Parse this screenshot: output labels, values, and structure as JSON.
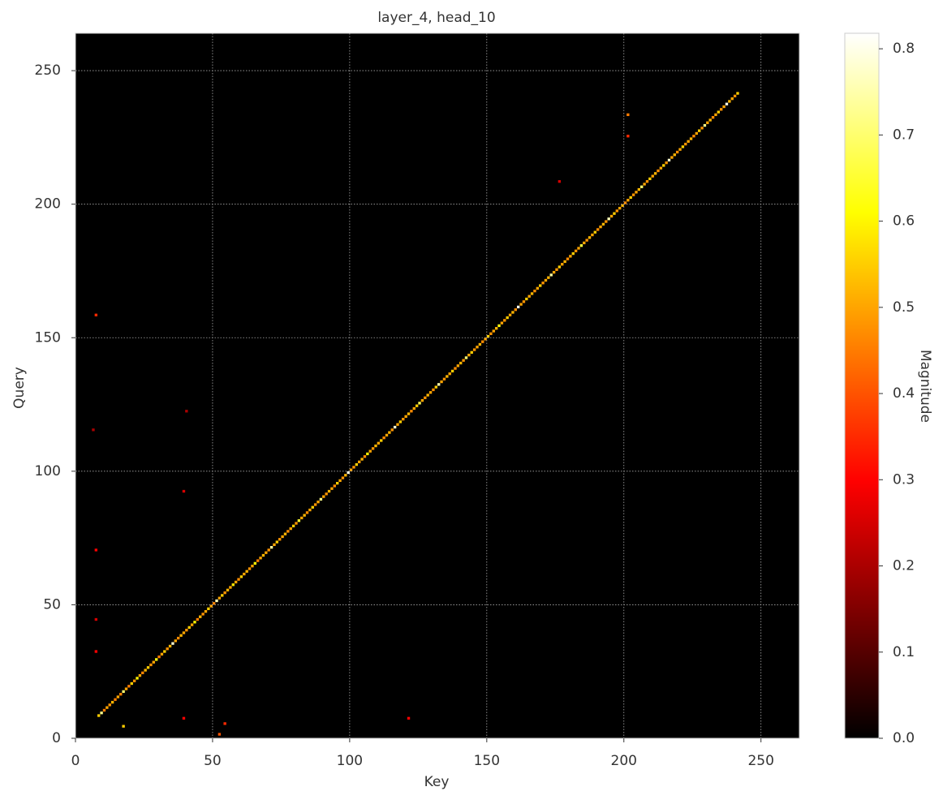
{
  "chart_data": {
    "type": "heatmap",
    "title": "layer_4, head_10",
    "x_label": "Key",
    "y_label": "Query",
    "colorbar_label": "Magnitude",
    "colormap": "hot",
    "grid": true,
    "xlim": [
      0,
      264
    ],
    "ylim": [
      0,
      264
    ],
    "clim": [
      0,
      0.818
    ],
    "xticks": [
      0,
      50,
      100,
      150,
      200,
      250
    ],
    "yticks": [
      0,
      50,
      100,
      150,
      200,
      250
    ],
    "cticks": [
      {
        "value": 0,
        "label": "0.0"
      },
      0.1,
      0.2,
      0.3,
      0.4,
      0.5,
      0.6,
      0.7,
      0.8
    ],
    "cells": {
      "x": [
        8,
        9,
        10,
        11,
        12,
        13,
        14,
        15,
        16,
        17,
        18,
        19,
        20,
        21,
        22,
        23,
        24,
        25,
        26,
        27,
        28,
        29,
        30,
        31,
        32,
        33,
        34,
        35,
        36,
        37,
        38,
        39,
        40,
        41,
        42,
        43,
        44,
        45,
        46,
        47,
        48,
        49,
        50,
        51,
        52,
        53,
        54,
        55,
        56,
        57,
        58,
        59,
        60,
        61,
        62,
        63,
        64,
        65,
        66,
        67,
        68,
        69,
        70,
        71,
        72,
        73,
        74,
        75,
        76,
        77,
        78,
        79,
        80,
        81,
        82,
        83,
        84,
        85,
        86,
        87,
        88,
        89,
        90,
        91,
        92,
        93,
        94,
        95,
        96,
        97,
        98,
        99,
        100,
        101,
        102,
        103,
        104,
        105,
        106,
        107,
        108,
        109,
        110,
        111,
        112,
        113,
        114,
        115,
        116,
        117,
        118,
        119,
        120,
        121,
        122,
        123,
        124,
        125,
        126,
        127,
        128,
        129,
        130,
        131,
        132,
        133,
        134,
        135,
        136,
        137,
        138,
        139,
        140,
        141,
        142,
        143,
        144,
        145,
        146,
        147,
        148,
        149,
        150,
        151,
        152,
        153,
        154,
        155,
        156,
        157,
        158,
        159,
        160,
        161,
        162,
        163,
        164,
        165,
        166,
        167,
        168,
        169,
        170,
        171,
        172,
        173,
        174,
        175,
        176,
        177,
        178,
        179,
        180,
        181,
        182,
        183,
        184,
        185,
        186,
        187,
        188,
        189,
        190,
        191,
        192,
        193,
        194,
        195,
        196,
        197,
        198,
        199,
        200,
        201,
        202,
        203,
        204,
        205,
        206,
        207,
        208,
        209,
        210,
        211,
        212,
        213,
        214,
        215,
        216,
        217,
        218,
        219,
        220,
        221,
        222,
        223,
        224,
        225,
        226,
        227,
        228,
        229,
        230,
        231,
        232,
        233,
        234,
        235,
        236,
        237,
        238,
        239,
        240,
        241,
        17,
        7,
        7,
        7,
        201,
        201,
        52,
        54,
        39,
        121,
        7,
        39,
        40,
        176,
        6
      ],
      "y": [
        8,
        9,
        10,
        11,
        12,
        13,
        14,
        15,
        16,
        17,
        18,
        19,
        20,
        21,
        22,
        23,
        24,
        25,
        26,
        27,
        28,
        29,
        30,
        31,
        32,
        33,
        34,
        35,
        36,
        37,
        38,
        39,
        40,
        41,
        42,
        43,
        44,
        45,
        46,
        47,
        48,
        49,
        50,
        51,
        52,
        53,
        54,
        55,
        56,
        57,
        58,
        59,
        60,
        61,
        62,
        63,
        64,
        65,
        66,
        67,
        68,
        69,
        70,
        71,
        72,
        73,
        74,
        75,
        76,
        77,
        78,
        79,
        80,
        81,
        82,
        83,
        84,
        85,
        86,
        87,
        88,
        89,
        90,
        91,
        92,
        93,
        94,
        95,
        96,
        97,
        98,
        99,
        100,
        101,
        102,
        103,
        104,
        105,
        106,
        107,
        108,
        109,
        110,
        111,
        112,
        113,
        114,
        115,
        116,
        117,
        118,
        119,
        120,
        121,
        122,
        123,
        124,
        125,
        126,
        127,
        128,
        129,
        130,
        131,
        132,
        133,
        134,
        135,
        136,
        137,
        138,
        139,
        140,
        141,
        142,
        143,
        144,
        145,
        146,
        147,
        148,
        149,
        150,
        151,
        152,
        153,
        154,
        155,
        156,
        157,
        158,
        159,
        160,
        161,
        162,
        163,
        164,
        165,
        166,
        167,
        168,
        169,
        170,
        171,
        172,
        173,
        174,
        175,
        176,
        177,
        178,
        179,
        180,
        181,
        182,
        183,
        184,
        185,
        186,
        187,
        188,
        189,
        190,
        191,
        192,
        193,
        194,
        195,
        196,
        197,
        198,
        199,
        200,
        201,
        202,
        203,
        204,
        205,
        206,
        207,
        208,
        209,
        210,
        211,
        212,
        213,
        214,
        215,
        216,
        217,
        218,
        219,
        220,
        221,
        222,
        223,
        224,
        225,
        226,
        227,
        228,
        229,
        230,
        231,
        232,
        233,
        234,
        235,
        236,
        237,
        238,
        239,
        240,
        241,
        4,
        158,
        70,
        32,
        233,
        225,
        1,
        5,
        7,
        7,
        44,
        92,
        122,
        208,
        115
      ],
      "values": [
        0.55,
        0.72,
        0.45,
        0.5,
        0.48,
        0.52,
        0.45,
        0.5,
        0.46,
        0.7,
        0.5,
        0.45,
        0.55,
        0.48,
        0.6,
        0.5,
        0.46,
        0.52,
        0.55,
        0.48,
        0.5,
        0.62,
        0.45,
        0.5,
        0.55,
        0.48,
        0.52,
        0.78,
        0.5,
        0.47,
        0.52,
        0.5,
        0.48,
        0.55,
        0.5,
        0.6,
        0.45,
        0.52,
        0.48,
        0.5,
        0.55,
        0.5,
        0.46,
        0.76,
        0.5,
        0.55,
        0.48,
        0.52,
        0.5,
        0.58,
        0.5,
        0.47,
        0.55,
        0.5,
        0.52,
        0.48,
        0.5,
        0.6,
        0.45,
        0.5,
        0.52,
        0.5,
        0.48,
        0.74,
        0.5,
        0.55,
        0.48,
        0.5,
        0.52,
        0.47,
        0.5,
        0.55,
        0.48,
        0.65,
        0.5,
        0.52,
        0.47,
        0.5,
        0.55,
        0.48,
        0.5,
        0.72,
        0.5,
        0.48,
        0.52,
        0.5,
        0.47,
        0.55,
        0.5,
        0.48,
        0.52,
        0.8,
        0.5,
        0.48,
        0.55,
        0.5,
        0.52,
        0.47,
        0.6,
        0.5,
        0.48,
        0.52,
        0.5,
        0.55,
        0.47,
        0.5,
        0.52,
        0.48,
        0.78,
        0.5,
        0.55,
        0.48,
        0.5,
        0.52,
        0.47,
        0.5,
        0.55,
        0.68,
        0.5,
        0.48,
        0.52,
        0.5,
        0.47,
        0.55,
        0.75,
        0.5,
        0.48,
        0.52,
        0.5,
        0.55,
        0.47,
        0.5,
        0.52,
        0.48,
        0.7,
        0.5,
        0.55,
        0.48,
        0.5,
        0.52,
        0.47,
        0.5,
        0.55,
        0.48,
        0.5,
        0.52,
        0.62,
        0.5,
        0.48,
        0.55,
        0.5,
        0.52,
        0.47,
        0.8,
        0.5,
        0.48,
        0.55,
        0.5,
        0.52,
        0.47,
        0.5,
        0.55,
        0.48,
        0.5,
        0.52,
        0.74,
        0.5,
        0.48,
        0.55,
        0.5,
        0.52,
        0.47,
        0.5,
        0.55,
        0.48,
        0.5,
        0.66,
        0.5,
        0.48,
        0.52,
        0.5,
        0.55,
        0.47,
        0.5,
        0.52,
        0.48,
        0.76,
        0.5,
        0.55,
        0.48,
        0.5,
        0.52,
        0.47,
        0.5,
        0.55,
        0.48,
        0.5,
        0.52,
        0.7,
        0.5,
        0.48,
        0.55,
        0.5,
        0.52,
        0.47,
        0.5,
        0.55,
        0.48,
        0.78,
        0.5,
        0.52,
        0.47,
        0.5,
        0.55,
        0.48,
        0.5,
        0.52,
        0.47,
        0.5,
        0.55,
        0.48,
        0.72,
        0.5,
        0.52,
        0.47,
        0.5,
        0.55,
        0.48,
        0.5,
        0.8,
        0.52,
        0.5,
        0.48,
        0.55,
        0.55,
        0.35,
        0.3,
        0.3,
        0.45,
        0.35,
        0.4,
        0.35,
        0.3,
        0.3,
        0.25,
        0.25,
        0.2,
        0.25,
        0.2
      ]
    }
  }
}
